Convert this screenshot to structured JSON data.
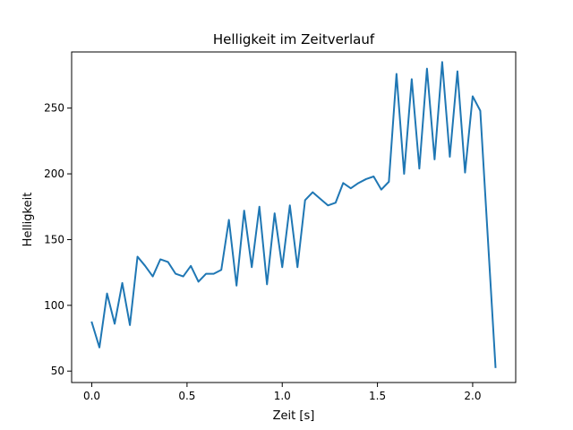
{
  "chart_data": {
    "type": "line",
    "title": "Helligkeit im Zeitverlauf",
    "xlabel": "Zeit [s]",
    "ylabel": "Helligkeit",
    "xlim": [
      -0.106,
      2.226
    ],
    "ylim": [
      41.3,
      292.7
    ],
    "grid": false,
    "line_color": "#1f77b4",
    "x_ticks": [
      0.0,
      0.5,
      1.0,
      1.5,
      2.0
    ],
    "x_tick_labels": [
      "0.0",
      "0.5",
      "1.0",
      "1.5",
      "2.0"
    ],
    "y_ticks": [
      50,
      100,
      150,
      200,
      250
    ],
    "y_tick_labels": [
      "50",
      "100",
      "150",
      "200",
      "250"
    ],
    "series": [
      {
        "x": [
          0.0,
          0.04,
          0.08,
          0.12,
          0.16,
          0.2,
          0.24,
          0.28,
          0.32,
          0.36,
          0.4,
          0.44,
          0.48,
          0.52,
          0.56,
          0.6,
          0.64,
          0.68,
          0.72,
          0.76,
          0.8,
          0.84,
          0.88,
          0.92,
          0.96,
          1.0,
          1.04,
          1.08,
          1.12,
          1.16,
          1.2,
          1.24,
          1.28,
          1.32,
          1.36,
          1.4,
          1.44,
          1.48,
          1.52,
          1.56,
          1.6,
          1.64,
          1.68,
          1.72,
          1.76,
          1.8,
          1.84,
          1.88,
          1.92,
          1.96,
          2.0,
          2.04,
          2.12
        ],
        "values": [
          87,
          68,
          109,
          86,
          117,
          85,
          137,
          130,
          122,
          135,
          133,
          124,
          122,
          130,
          118,
          124,
          124,
          127,
          165,
          115,
          172,
          129,
          175,
          116,
          170,
          129,
          176,
          129,
          180,
          186,
          181,
          176,
          178,
          193,
          189,
          193,
          196,
          198,
          188,
          194,
          276,
          200,
          272,
          204,
          280,
          211,
          285,
          213,
          278,
          201,
          259,
          248,
          53
        ]
      }
    ]
  }
}
